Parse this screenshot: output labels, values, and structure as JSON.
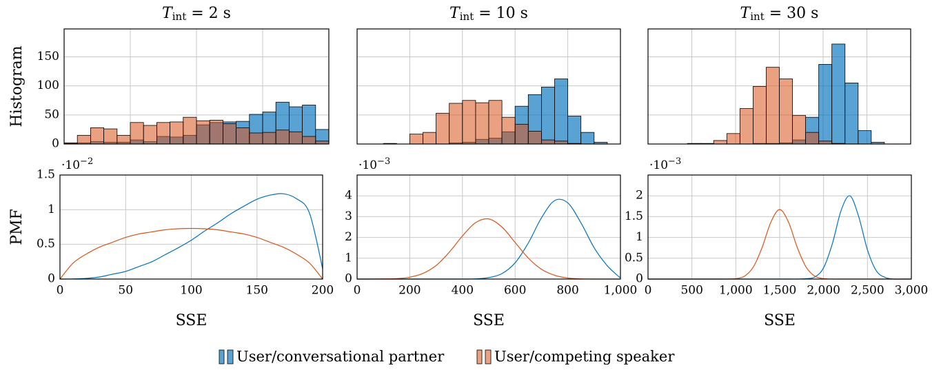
{
  "chart_data": [
    {
      "type": "histogram",
      "title": [
        "T",
        "int",
        " = 2 s"
      ],
      "ylabel": "Histogram",
      "bins": [
        0,
        10,
        20,
        30,
        40,
        50,
        60,
        70,
        80,
        90,
        100,
        110,
        120,
        130,
        140,
        150,
        160,
        170,
        180,
        190,
        200
      ],
      "series": [
        {
          "name": "User/conversational partner",
          "color": "#0072bd",
          "values": [
            1,
            2,
            4,
            3,
            3,
            7,
            4,
            13,
            12,
            15,
            33,
            37,
            38,
            39,
            51,
            55,
            72,
            64,
            67,
            25
          ]
        },
        {
          "name": "User/competing speaker",
          "color": "#d95319",
          "values": [
            2,
            15,
            28,
            26,
            15,
            37,
            32,
            37,
            38,
            46,
            40,
            41,
            35,
            28,
            19,
            20,
            24,
            21,
            13,
            5
          ]
        }
      ],
      "xlim": [
        0,
        200
      ],
      "xticks": [
        0,
        50,
        100,
        150,
        200
      ],
      "ylim": [
        0,
        198
      ],
      "yticks": [
        0,
        50,
        100,
        150
      ],
      "xtick_labels": false,
      "ytick_labels": true,
      "grid": true
    },
    {
      "type": "histogram",
      "title": [
        "T",
        "int",
        " = 10 s"
      ],
      "bins": [
        0,
        50,
        100,
        150,
        200,
        250,
        300,
        350,
        400,
        450,
        500,
        550,
        600,
        650,
        700,
        750,
        800,
        850,
        900,
        950,
        1000
      ],
      "series": [
        {
          "color": "#0072bd",
          "values": [
            0,
            0,
            0,
            0,
            0,
            0,
            0,
            2,
            3,
            8,
            10,
            21,
            65,
            85,
            98,
            112,
            48,
            20,
            3,
            0
          ]
        },
        {
          "color": "#d95319",
          "values": [
            0,
            0,
            1,
            0,
            17,
            20,
            53,
            70,
            75,
            71,
            75,
            46,
            34,
            22,
            7,
            5,
            1,
            0,
            0,
            0
          ]
        }
      ],
      "xlim": [
        0,
        1000
      ],
      "xticks": [
        0,
        200,
        400,
        600,
        800,
        1000
      ],
      "ylim": [
        0,
        198
      ],
      "yticks": [
        0,
        50,
        100,
        150
      ],
      "xtick_labels": false,
      "ytick_labels": false,
      "grid": true
    },
    {
      "type": "histogram",
      "title": [
        "T",
        "int",
        " = 30 s"
      ],
      "bins": [
        0,
        150,
        300,
        450,
        600,
        750,
        900,
        1050,
        1200,
        1350,
        1500,
        1650,
        1800,
        1950,
        2100,
        2250,
        2400,
        2550,
        2700,
        2850,
        3000
      ],
      "series": [
        {
          "color": "#0072bd",
          "values": [
            0,
            0,
            0,
            0,
            0,
            0,
            0,
            0,
            1,
            1,
            2,
            7,
            46,
            137,
            172,
            105,
            23,
            3,
            0,
            0
          ]
        },
        {
          "color": "#d95319",
          "values": [
            0,
            0,
            0,
            1,
            1,
            6,
            18,
            61,
            99,
            132,
            112,
            49,
            20,
            5,
            1,
            0,
            0,
            0,
            0,
            0
          ]
        }
      ],
      "xlim": [
        0,
        3000
      ],
      "xticks": [
        0,
        500,
        1000,
        1500,
        2000,
        2500,
        3000
      ],
      "ylim": [
        0,
        198
      ],
      "yticks": [
        0,
        50,
        100,
        150
      ],
      "xtick_labels": false,
      "ytick_labels": false,
      "grid": true
    },
    {
      "type": "line",
      "ylabel": "PMF",
      "xlabel": "SSE",
      "multiplier": [
        "·10",
        "−2"
      ],
      "x": [
        0,
        10,
        20,
        30,
        40,
        50,
        60,
        70,
        80,
        90,
        100,
        110,
        120,
        130,
        140,
        150,
        160,
        170,
        180,
        190,
        200
      ],
      "series": [
        {
          "color": "#0072bd",
          "values": [
            0,
            0.002,
            0.01,
            0.03,
            0.07,
            0.11,
            0.18,
            0.25,
            0.35,
            0.45,
            0.56,
            0.69,
            0.81,
            0.94,
            1.05,
            1.15,
            1.21,
            1.23,
            1.16,
            0.95,
            0.15
          ]
        },
        {
          "color": "#d95319",
          "values": [
            0,
            0.23,
            0.36,
            0.46,
            0.53,
            0.6,
            0.65,
            0.68,
            0.71,
            0.725,
            0.73,
            0.725,
            0.71,
            0.68,
            0.65,
            0.6,
            0.53,
            0.46,
            0.36,
            0.23,
            0
          ]
        }
      ],
      "xlim": [
        0,
        200
      ],
      "xticks": [
        0,
        50,
        100,
        150,
        200
      ],
      "ylim": [
        0,
        1.5
      ],
      "yticks": [
        0,
        0.5,
        1,
        1.5
      ],
      "xtick_labels": true,
      "ytick_labels": true,
      "grid": true
    },
    {
      "type": "line",
      "xlabel": "SSE",
      "multiplier": [
        "·10",
        "−3"
      ],
      "x": [
        0,
        50,
        100,
        150,
        200,
        250,
        300,
        350,
        400,
        450,
        500,
        550,
        600,
        650,
        700,
        750,
        800,
        850,
        900,
        950,
        1000
      ],
      "series": [
        {
          "color": "#0072bd",
          "values": [
            0,
            0,
            0,
            0,
            0,
            0,
            0,
            0,
            0,
            0.01,
            0.07,
            0.26,
            0.78,
            1.73,
            2.94,
            3.77,
            3.66,
            2.7,
            1.51,
            0.64,
            0.05
          ]
        },
        {
          "color": "#d95319",
          "values": [
            0,
            0,
            0.01,
            0.02,
            0.09,
            0.27,
            0.65,
            1.29,
            2.07,
            2.71,
            2.89,
            2.5,
            1.76,
            1.01,
            0.47,
            0.18,
            0.05,
            0.01,
            0,
            0,
            0
          ]
        }
      ],
      "xlim": [
        0,
        1000
      ],
      "xticks": [
        0,
        200,
        400,
        600,
        800,
        {
          "value": 1000,
          "label": "1,000"
        }
      ],
      "ylim": [
        0,
        5
      ],
      "yticks": [
        0,
        1,
        2,
        3,
        4
      ],
      "xtick_labels": true,
      "ytick_labels": true,
      "grid": true
    },
    {
      "type": "line",
      "xlabel": "SSE",
      "multiplier": [
        "·10",
        "−3"
      ],
      "x": [
        0,
        100,
        200,
        300,
        400,
        500,
        600,
        700,
        800,
        900,
        1000,
        1100,
        1200,
        1300,
        1400,
        1500,
        1600,
        1700,
        1800,
        1900,
        2000,
        2100,
        2200,
        2300,
        2400,
        2500,
        2600,
        2700,
        2800,
        2900,
        3000
      ],
      "series": [
        {
          "color": "#0072bd",
          "values": [
            0,
            0,
            0,
            0,
            0,
            0,
            0,
            0,
            0,
            0,
            0,
            0,
            0,
            0,
            0,
            0,
            0,
            0,
            0.01,
            0.05,
            0.27,
            0.85,
            1.65,
            2,
            1.5,
            0.7,
            0.2,
            0.04,
            0,
            0,
            0
          ]
        },
        {
          "color": "#d95319",
          "values": [
            0,
            0,
            0,
            0,
            0,
            0,
            0,
            0,
            0,
            0,
            0.01,
            0.07,
            0.29,
            0.76,
            1.37,
            1.67,
            1.37,
            0.76,
            0.29,
            0.07,
            0.01,
            0,
            0,
            0,
            0,
            0,
            0,
            0,
            0,
            0,
            0
          ]
        }
      ],
      "xlim": [
        0,
        3000
      ],
      "xticks": [
        0,
        500,
        {
          "value": 1000,
          "label": "1,000"
        },
        {
          "value": 1500,
          "label": "1,500"
        },
        {
          "value": 2000,
          "label": "2,000"
        },
        {
          "value": 2500,
          "label": "2,500"
        },
        {
          "value": 3000,
          "label": "3,000"
        }
      ],
      "ylim": [
        0,
        2.5
      ],
      "yticks": [
        0,
        0.5,
        1,
        1.5,
        2
      ],
      "xtick_labels": true,
      "ytick_labels": true,
      "grid": true
    }
  ]
}
